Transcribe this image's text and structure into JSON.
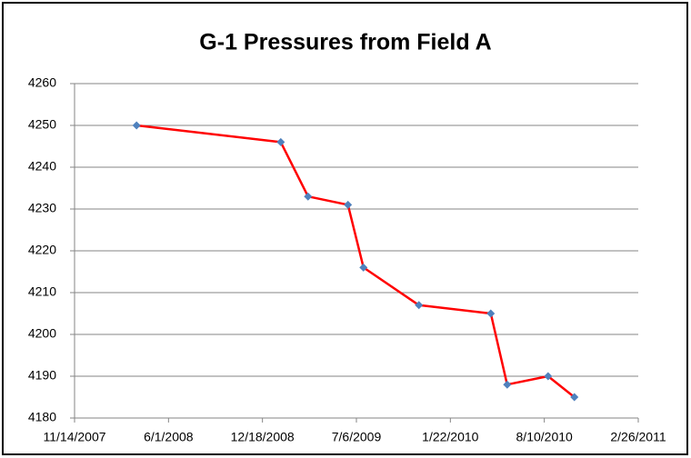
{
  "chart_data": {
    "type": "line",
    "title": "G-1 Pressures from Field A",
    "x": [
      "3/25/2008",
      "1/26/2009",
      "3/25/2009",
      "6/18/2009",
      "7/21/2009",
      "11/16/2009",
      "4/18/2010",
      "5/23/2010",
      "8/18/2010",
      "10/13/2010"
    ],
    "series": [
      {
        "name": "G-1",
        "color": "#ff0000",
        "marker_color": "#4f81bd",
        "values": [
          4250,
          4246,
          4233,
          4231,
          4216,
          4207,
          4205,
          4188,
          4190,
          4185
        ]
      }
    ],
    "xlim": [
      "11/14/2007",
      "2/26/2011"
    ],
    "xticks": [
      "11/14/2007",
      "6/1/2008",
      "12/18/2008",
      "7/6/2009",
      "1/22/2010",
      "8/10/2010",
      "2/26/2011"
    ],
    "ylim": [
      4180,
      4260
    ],
    "yticks": [
      4180,
      4190,
      4200,
      4210,
      4220,
      4230,
      4240,
      4250,
      4260
    ],
    "grid": true
  }
}
